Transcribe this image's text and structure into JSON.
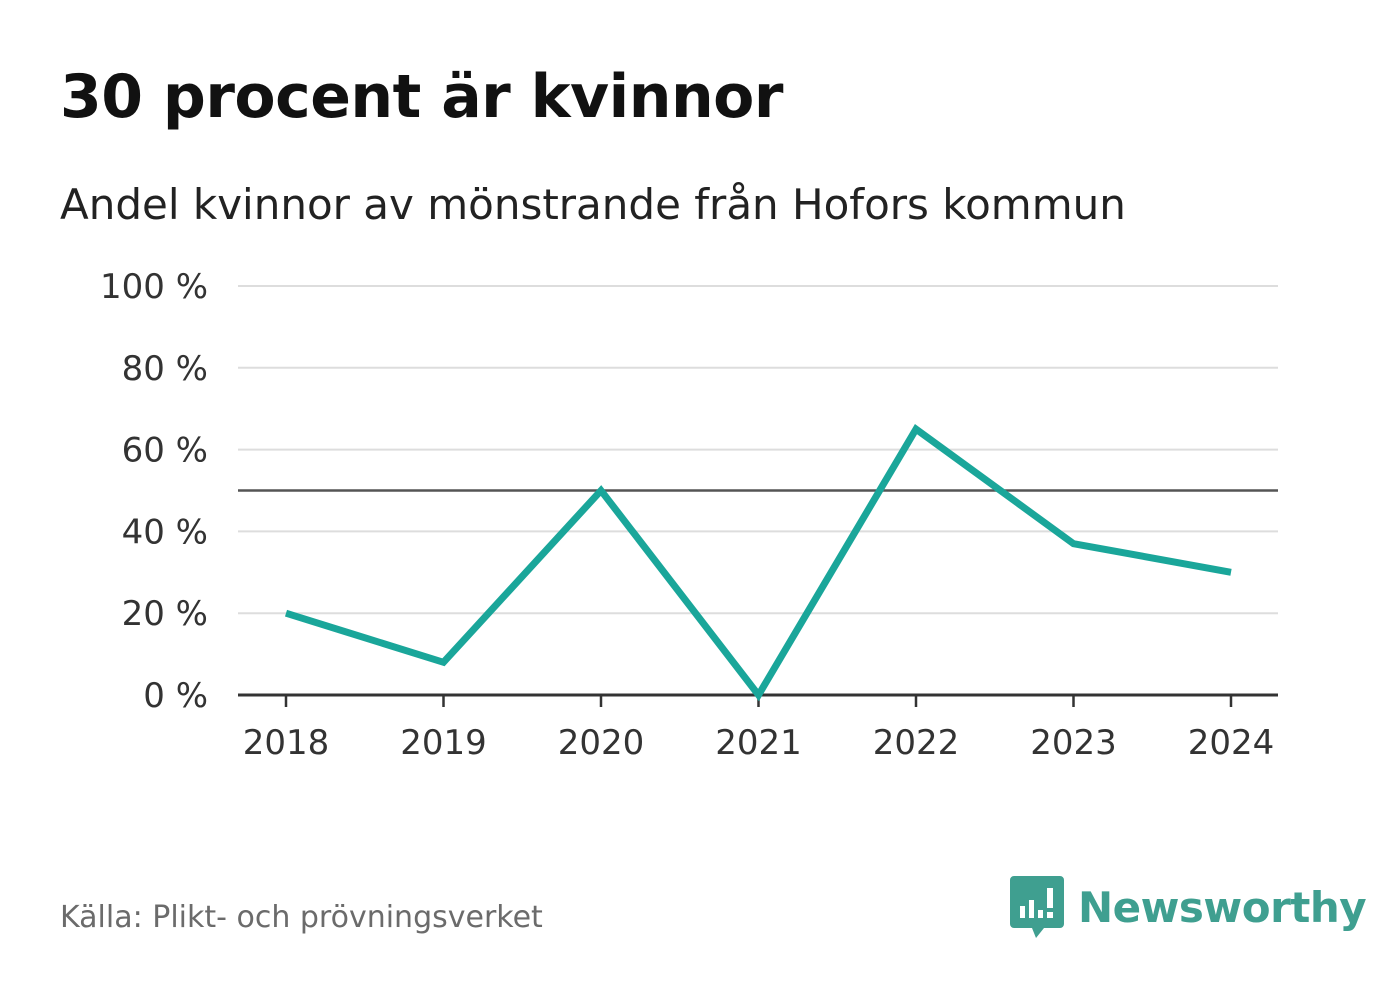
{
  "title": "30 procent är kvinnor",
  "subtitle": "Andel kvinnor av mönstrande från Hofors kommun",
  "source": "Källa: Plikt- och prövningsverket",
  "brand": {
    "name": "Newsworthy",
    "icon": "newsworthy-logo-icon",
    "color": "#3f9f90"
  },
  "colors": {
    "line": "#1aa69a",
    "grid": "#dddddd",
    "reference": "#555555",
    "axis": "#333333"
  },
  "chart_data": {
    "type": "line",
    "title": "30 procent är kvinnor",
    "subtitle": "Andel kvinnor av mönstrande från Hofors kommun",
    "xlabel": "",
    "ylabel": "",
    "categories": [
      "2018",
      "2019",
      "2020",
      "2021",
      "2022",
      "2023",
      "2024"
    ],
    "series": [
      {
        "name": "Andel kvinnor",
        "values": [
          20,
          8,
          50,
          0,
          65,
          37,
          30
        ]
      }
    ],
    "ylim": [
      0,
      100
    ],
    "yticks": [
      0,
      20,
      40,
      60,
      80,
      100
    ],
    "ytick_labels": [
      "0 %",
      "20 %",
      "40 %",
      "60 %",
      "80 %",
      "100 %"
    ],
    "reference_line": 50,
    "grid": true
  }
}
